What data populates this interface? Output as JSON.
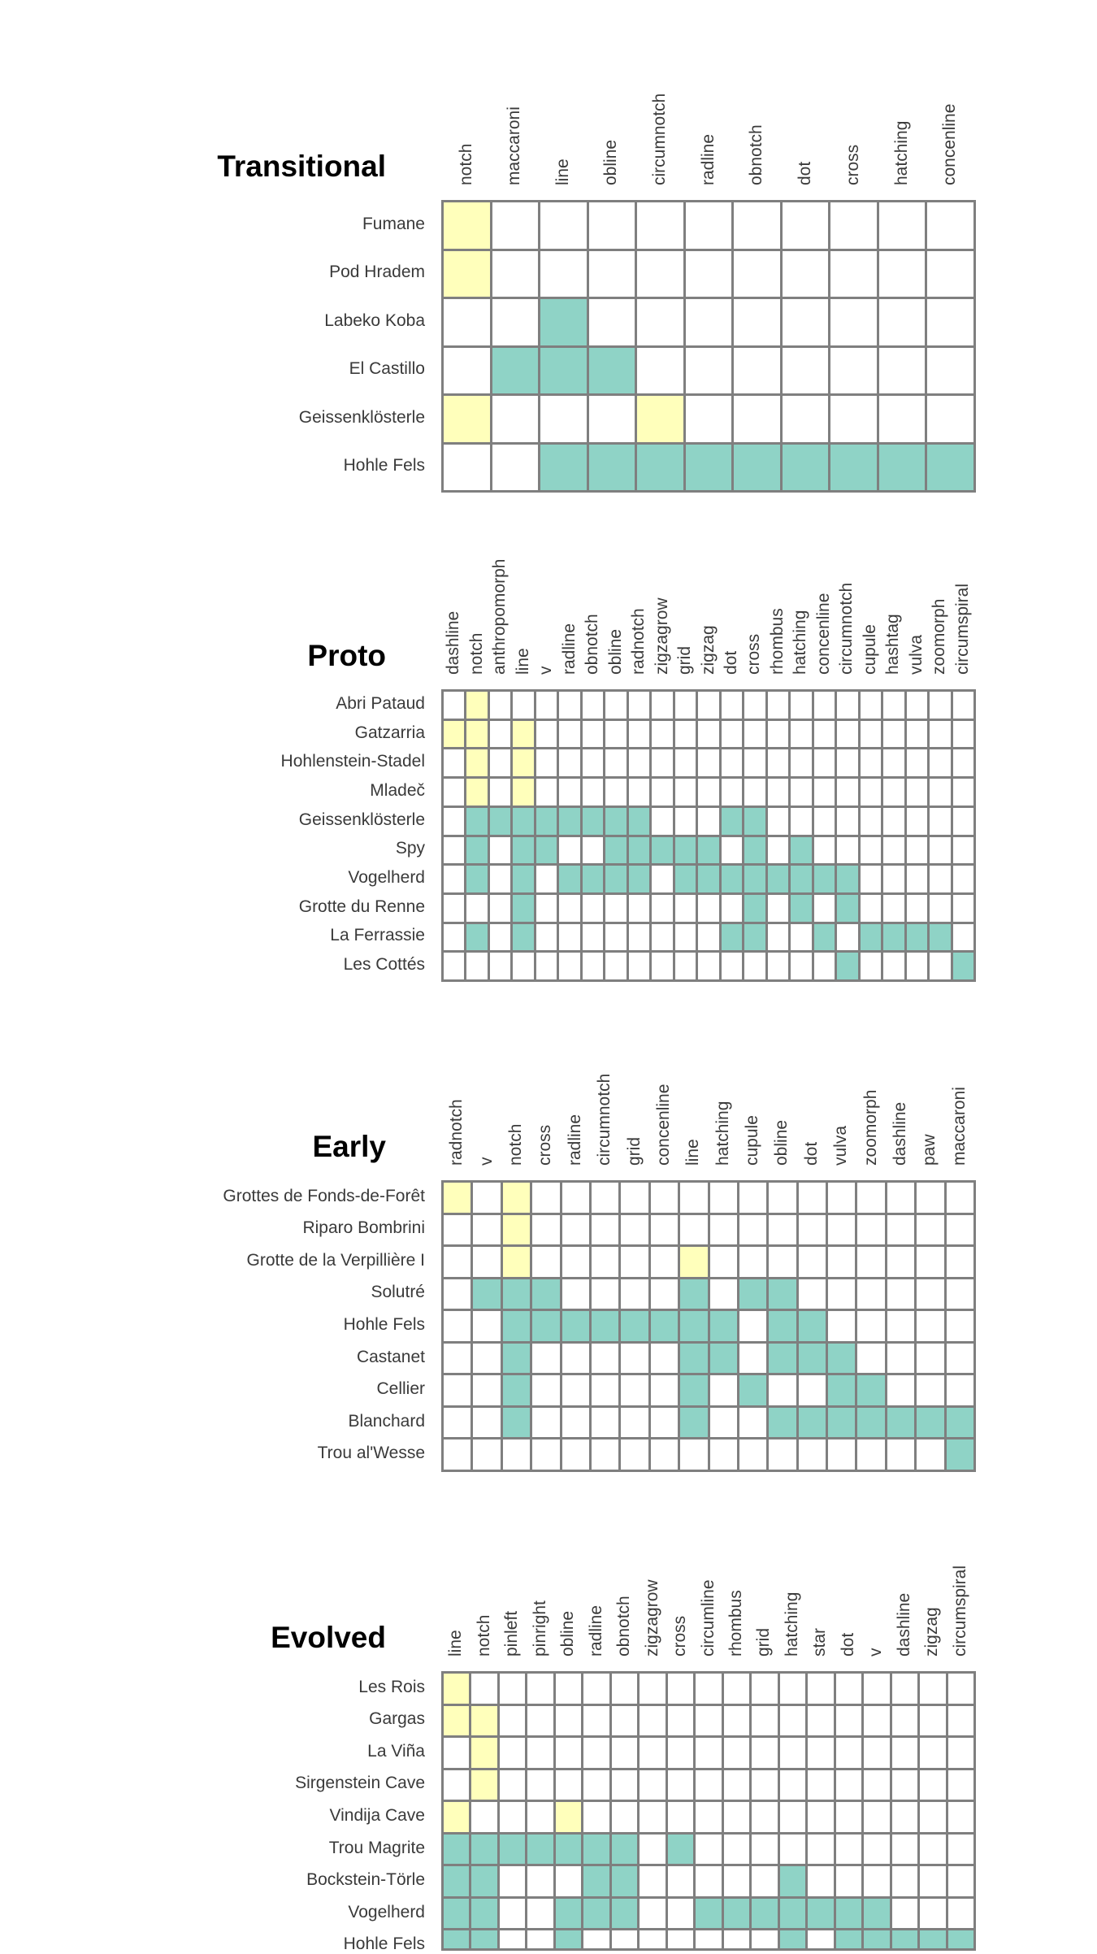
{
  "chart_data": [
    {
      "type": "heatmap",
      "title": "Transitional",
      "colors": {
        "0": "#ffffff",
        "1": "#ffffbb",
        "2": "#8fd3c6"
      },
      "columns": [
        "notch",
        "maccaroni",
        "line",
        "obline",
        "circumnotch",
        "radline",
        "obnotch",
        "dot",
        "cross",
        "hatching",
        "concenline"
      ],
      "rows": [
        "Fumane",
        "Pod Hradem",
        "Labeko Koba",
        "El Castillo",
        "Geissenklösterle",
        "Hohle Fels"
      ],
      "values": [
        [
          1,
          0,
          0,
          0,
          0,
          0,
          0,
          0,
          0,
          0,
          0
        ],
        [
          1,
          0,
          0,
          0,
          0,
          0,
          0,
          0,
          0,
          0,
          0
        ],
        [
          0,
          0,
          2,
          0,
          0,
          0,
          0,
          0,
          0,
          0,
          0
        ],
        [
          0,
          2,
          2,
          2,
          0,
          0,
          0,
          0,
          0,
          0,
          0
        ],
        [
          1,
          0,
          0,
          0,
          1,
          0,
          0,
          0,
          0,
          0,
          0
        ],
        [
          0,
          0,
          2,
          2,
          2,
          2,
          2,
          2,
          2,
          2,
          2
        ]
      ]
    },
    {
      "type": "heatmap",
      "title": "Proto",
      "colors": {
        "0": "#ffffff",
        "1": "#ffffbb",
        "2": "#8fd3c6"
      },
      "columns": [
        "dashline",
        "notch",
        "anthropomorph",
        "line",
        "v",
        "radline",
        "obnotch",
        "obline",
        "radnotch",
        "zigzagrow",
        "grid",
        "zigzag",
        "dot",
        "cross",
        "rhombus",
        "hatching",
        "concenline",
        "circumnotch",
        "cupule",
        "hashtag",
        "vulva",
        "zoomorph",
        "circumspiral"
      ],
      "rows": [
        "Abri Pataud",
        "Gatzarria",
        "Hohlenstein-Stadel",
        "Mladeč",
        "Geissenklösterle",
        "Spy",
        "Vogelherd",
        "Grotte du Renne",
        "La Ferrassie",
        "Les Cottés"
      ],
      "values": [
        [
          0,
          1,
          0,
          0,
          0,
          0,
          0,
          0,
          0,
          0,
          0,
          0,
          0,
          0,
          0,
          0,
          0,
          0,
          0,
          0,
          0,
          0,
          0
        ],
        [
          1,
          1,
          0,
          1,
          0,
          0,
          0,
          0,
          0,
          0,
          0,
          0,
          0,
          0,
          0,
          0,
          0,
          0,
          0,
          0,
          0,
          0,
          0
        ],
        [
          0,
          1,
          0,
          1,
          0,
          0,
          0,
          0,
          0,
          0,
          0,
          0,
          0,
          0,
          0,
          0,
          0,
          0,
          0,
          0,
          0,
          0,
          0
        ],
        [
          0,
          1,
          0,
          1,
          0,
          0,
          0,
          0,
          0,
          0,
          0,
          0,
          0,
          0,
          0,
          0,
          0,
          0,
          0,
          0,
          0,
          0,
          0
        ],
        [
          0,
          2,
          2,
          2,
          2,
          2,
          2,
          2,
          2,
          0,
          0,
          0,
          2,
          2,
          0,
          0,
          0,
          0,
          0,
          0,
          0,
          0,
          0
        ],
        [
          0,
          2,
          0,
          2,
          2,
          0,
          0,
          2,
          2,
          2,
          2,
          2,
          0,
          2,
          0,
          2,
          0,
          0,
          0,
          0,
          0,
          0,
          0
        ],
        [
          0,
          2,
          0,
          2,
          0,
          2,
          2,
          2,
          2,
          0,
          2,
          2,
          2,
          2,
          2,
          2,
          2,
          2,
          0,
          0,
          0,
          0,
          0
        ],
        [
          0,
          0,
          0,
          2,
          0,
          0,
          0,
          0,
          0,
          0,
          0,
          0,
          0,
          2,
          0,
          2,
          0,
          2,
          0,
          0,
          0,
          0,
          0
        ],
        [
          0,
          2,
          0,
          2,
          0,
          0,
          0,
          0,
          0,
          0,
          0,
          0,
          2,
          2,
          0,
          0,
          2,
          0,
          2,
          2,
          2,
          2,
          0
        ],
        [
          0,
          0,
          0,
          0,
          0,
          0,
          0,
          0,
          0,
          0,
          0,
          0,
          0,
          0,
          0,
          0,
          0,
          2,
          0,
          0,
          0,
          0,
          2
        ]
      ]
    },
    {
      "type": "heatmap",
      "title": "Early",
      "colors": {
        "0": "#ffffff",
        "1": "#ffffbb",
        "2": "#8fd3c6"
      },
      "columns": [
        "radnotch",
        "v",
        "notch",
        "cross",
        "radline",
        "circumnotch",
        "grid",
        "concenline",
        "line",
        "hatching",
        "cupule",
        "obline",
        "dot",
        "vulva",
        "zoomorph",
        "dashline",
        "paw",
        "maccaroni"
      ],
      "rows": [
        "Grottes de Fonds-de-Forêt",
        "Riparo Bombrini",
        "Grotte de la Verpillière I",
        "Solutré",
        "Hohle Fels",
        "Castanet",
        "Cellier",
        "Blanchard",
        "Trou al'Wesse"
      ],
      "values": [
        [
          1,
          0,
          1,
          0,
          0,
          0,
          0,
          0,
          0,
          0,
          0,
          0,
          0,
          0,
          0,
          0,
          0,
          0
        ],
        [
          0,
          0,
          1,
          0,
          0,
          0,
          0,
          0,
          0,
          0,
          0,
          0,
          0,
          0,
          0,
          0,
          0,
          0
        ],
        [
          0,
          0,
          1,
          0,
          0,
          0,
          0,
          0,
          1,
          0,
          0,
          0,
          0,
          0,
          0,
          0,
          0,
          0
        ],
        [
          0,
          2,
          2,
          2,
          0,
          0,
          0,
          0,
          2,
          0,
          2,
          2,
          0,
          0,
          0,
          0,
          0,
          0
        ],
        [
          0,
          0,
          2,
          2,
          2,
          2,
          2,
          2,
          2,
          2,
          0,
          2,
          2,
          0,
          0,
          0,
          0,
          0
        ],
        [
          0,
          0,
          2,
          0,
          0,
          0,
          0,
          0,
          2,
          2,
          0,
          2,
          2,
          2,
          0,
          0,
          0,
          0
        ],
        [
          0,
          0,
          2,
          0,
          0,
          0,
          0,
          0,
          2,
          0,
          2,
          0,
          0,
          2,
          2,
          0,
          0,
          0
        ],
        [
          0,
          0,
          2,
          0,
          0,
          0,
          0,
          0,
          2,
          0,
          0,
          2,
          2,
          2,
          2,
          2,
          2,
          2
        ],
        [
          0,
          0,
          0,
          0,
          0,
          0,
          0,
          0,
          0,
          0,
          0,
          0,
          0,
          0,
          0,
          0,
          0,
          2
        ]
      ]
    },
    {
      "type": "heatmap",
      "title": "Evolved",
      "colors": {
        "0": "#ffffff",
        "1": "#ffffbb",
        "2": "#8fd3c6"
      },
      "columns": [
        "line",
        "notch",
        "pinleft",
        "pinright",
        "obline",
        "radline",
        "obnotch",
        "zigzagrow",
        "cross",
        "circumline",
        "rhombus",
        "grid",
        "hatching",
        "star",
        "dot",
        "v",
        "dashline",
        "zigzag",
        "circumspiral"
      ],
      "rows": [
        "Les Rois",
        "Gargas",
        "La Viña",
        "Sirgenstein Cave",
        "Vindija Cave",
        "Trou Magrite",
        "Bockstein-Törle",
        "Vogelherd",
        "Hohle Fels"
      ],
      "values": [
        [
          1,
          0,
          0,
          0,
          0,
          0,
          0,
          0,
          0,
          0,
          0,
          0,
          0,
          0,
          0,
          0,
          0,
          0,
          0
        ],
        [
          1,
          1,
          0,
          0,
          0,
          0,
          0,
          0,
          0,
          0,
          0,
          0,
          0,
          0,
          0,
          0,
          0,
          0,
          0
        ],
        [
          0,
          1,
          0,
          0,
          0,
          0,
          0,
          0,
          0,
          0,
          0,
          0,
          0,
          0,
          0,
          0,
          0,
          0,
          0
        ],
        [
          0,
          1,
          0,
          0,
          0,
          0,
          0,
          0,
          0,
          0,
          0,
          0,
          0,
          0,
          0,
          0,
          0,
          0,
          0
        ],
        [
          1,
          0,
          0,
          0,
          1,
          0,
          0,
          0,
          0,
          0,
          0,
          0,
          0,
          0,
          0,
          0,
          0,
          0,
          0
        ],
        [
          2,
          2,
          2,
          2,
          2,
          2,
          2,
          0,
          2,
          0,
          0,
          0,
          0,
          0,
          0,
          0,
          0,
          0,
          0
        ],
        [
          2,
          2,
          0,
          0,
          0,
          2,
          2,
          0,
          0,
          0,
          0,
          0,
          2,
          0,
          0,
          0,
          0,
          0,
          0
        ],
        [
          2,
          2,
          0,
          0,
          2,
          2,
          2,
          0,
          0,
          2,
          2,
          2,
          2,
          2,
          2,
          2,
          0,
          0,
          0
        ],
        [
          2,
          2,
          0,
          0,
          2,
          0,
          0,
          0,
          0,
          0,
          0,
          0,
          2,
          0,
          2,
          2,
          2,
          2,
          2
        ]
      ]
    }
  ]
}
